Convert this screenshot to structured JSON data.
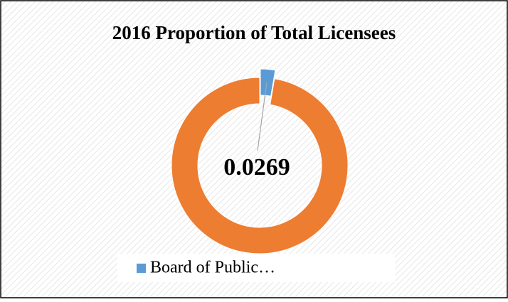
{
  "chart_data": {
    "type": "doughnut",
    "title": "2016 Proportion of Total Licensees",
    "categories": [
      "Board of Public…",
      null
    ],
    "values": [
      0.0269,
      0.9731
    ],
    "colors": [
      "#5b9bd5",
      "#ed7d31"
    ],
    "legend": "bottom"
  }
}
